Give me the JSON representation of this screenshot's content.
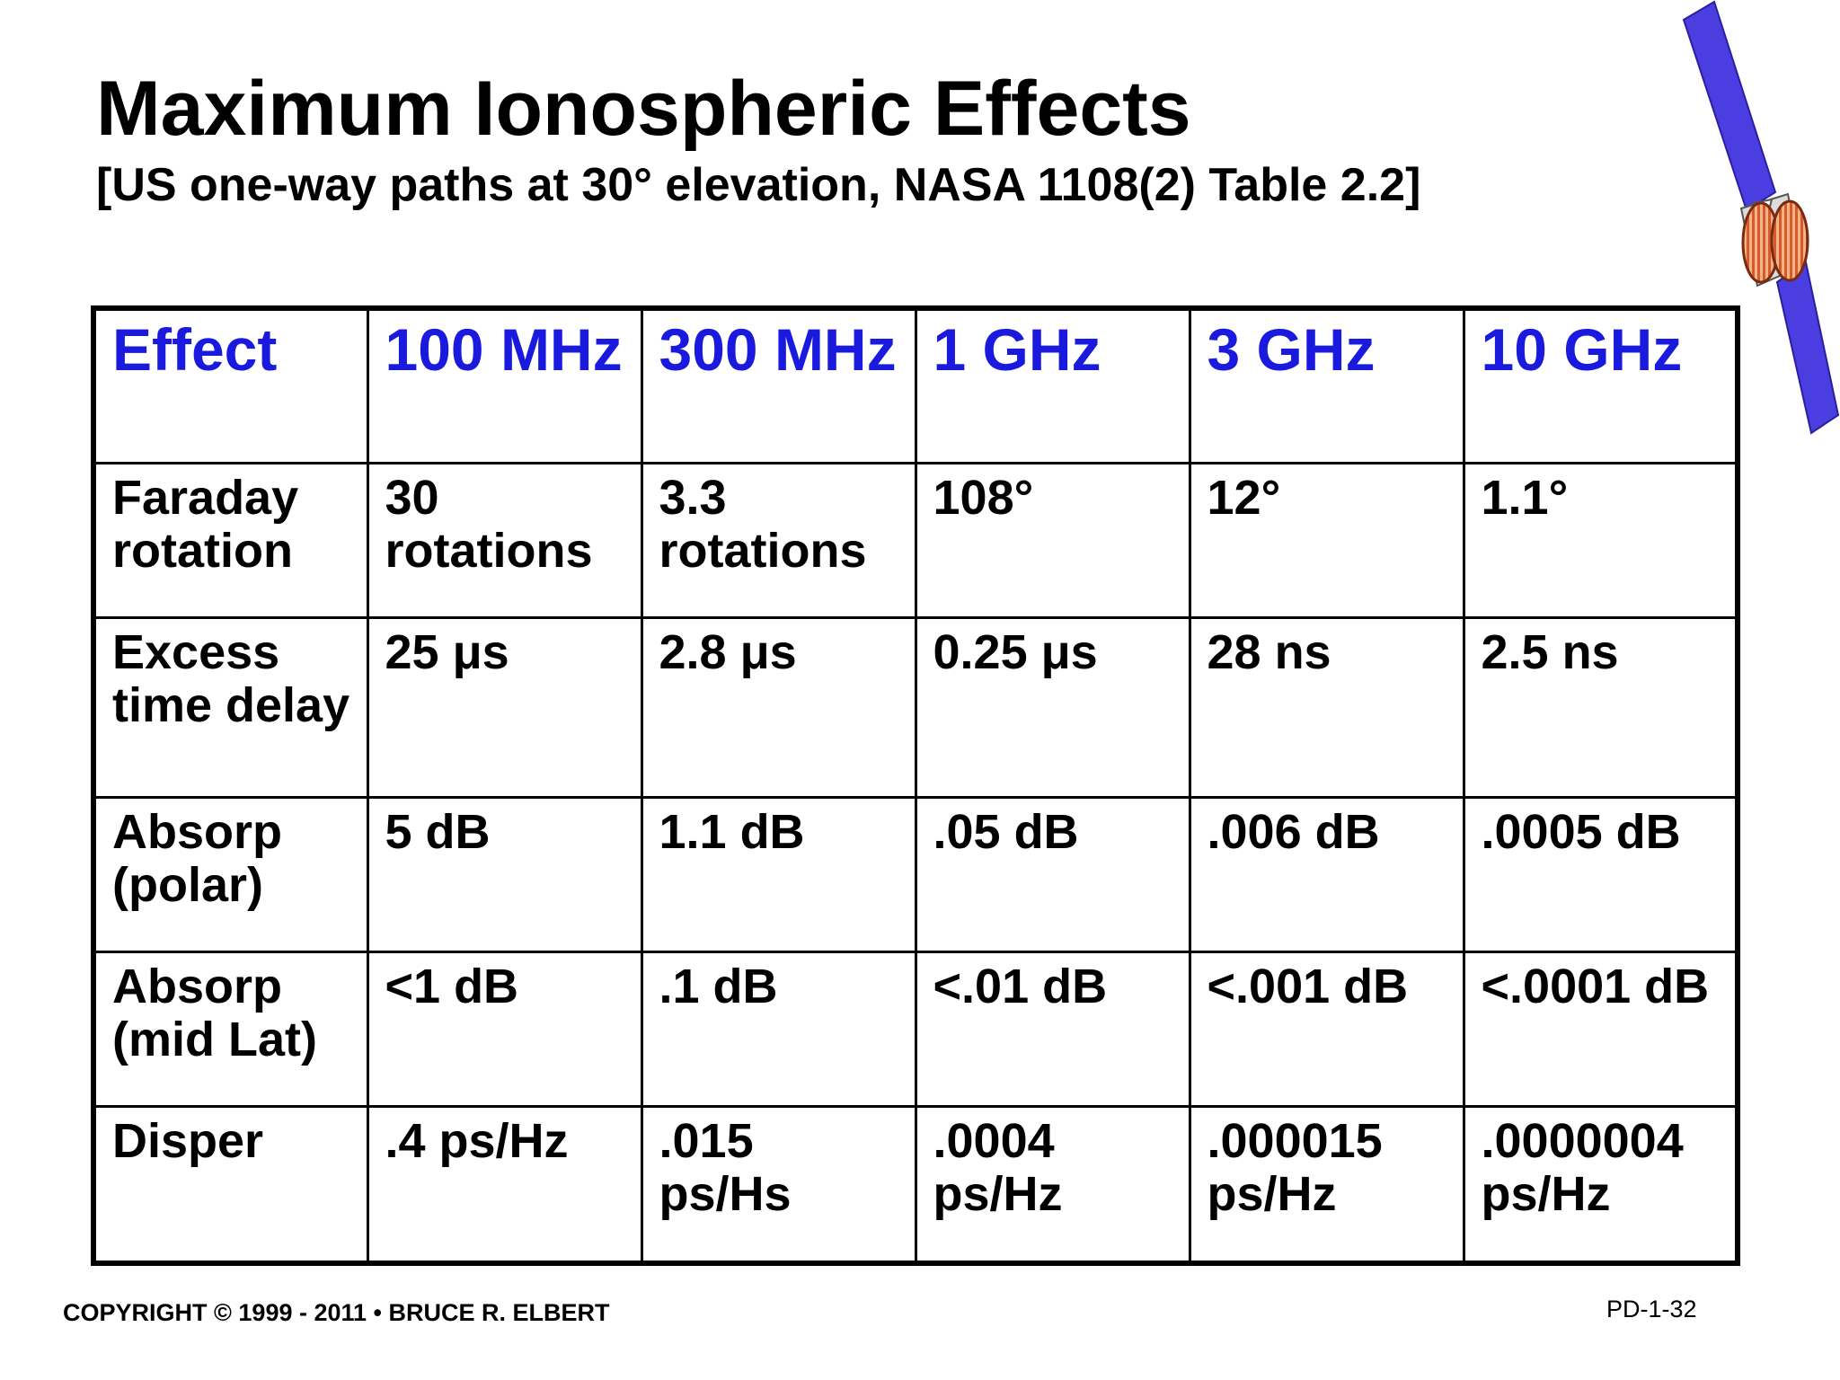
{
  "title": "Maximum Ionospheric Effects",
  "subtitle": "[US one-way paths at 30° elevation, NASA 1108(2) Table 2.2]",
  "colors": {
    "header_text": "#1a1adf",
    "body_text": "#000000",
    "satellite_panel": "#4a3ee0",
    "satellite_body": "#e8844a"
  },
  "table": {
    "headers": [
      "Effect",
      "100 MHz",
      "300 MHz",
      "1 GHz",
      "3 GHz",
      "10 GHz"
    ],
    "rows": [
      [
        "Faraday rotation",
        "30 rotations",
        "3.3 rotations",
        "108°",
        "12°",
        "1.1°"
      ],
      [
        "Excess time delay",
        "25 μs",
        "2.8 μs",
        "0.25 μs",
        "28 ns",
        "2.5 ns"
      ],
      [
        "Absorp (polar)",
        "5 dB",
        "1.1 dB",
        ".05 dB",
        ".006 dB",
        ".0005 dB"
      ],
      [
        "Absorp (mid Lat)",
        "<1 dB",
        ".1 dB",
        "<.01 dB",
        "<.001 dB",
        "<.0001 dB"
      ],
      [
        "Disper",
        ".4 ps/Hz",
        ".015 ps/Hs",
        ".0004 ps/Hz",
        ".000015 ps/Hz",
        ".0000004 ps/Hz"
      ]
    ]
  },
  "footer": {
    "copyright": "COPYRIGHT © 1999 - 2011 • BRUCE R. ELBERT",
    "page_code": "PD-1-32"
  },
  "icons": {
    "satellite": "satellite-icon"
  }
}
